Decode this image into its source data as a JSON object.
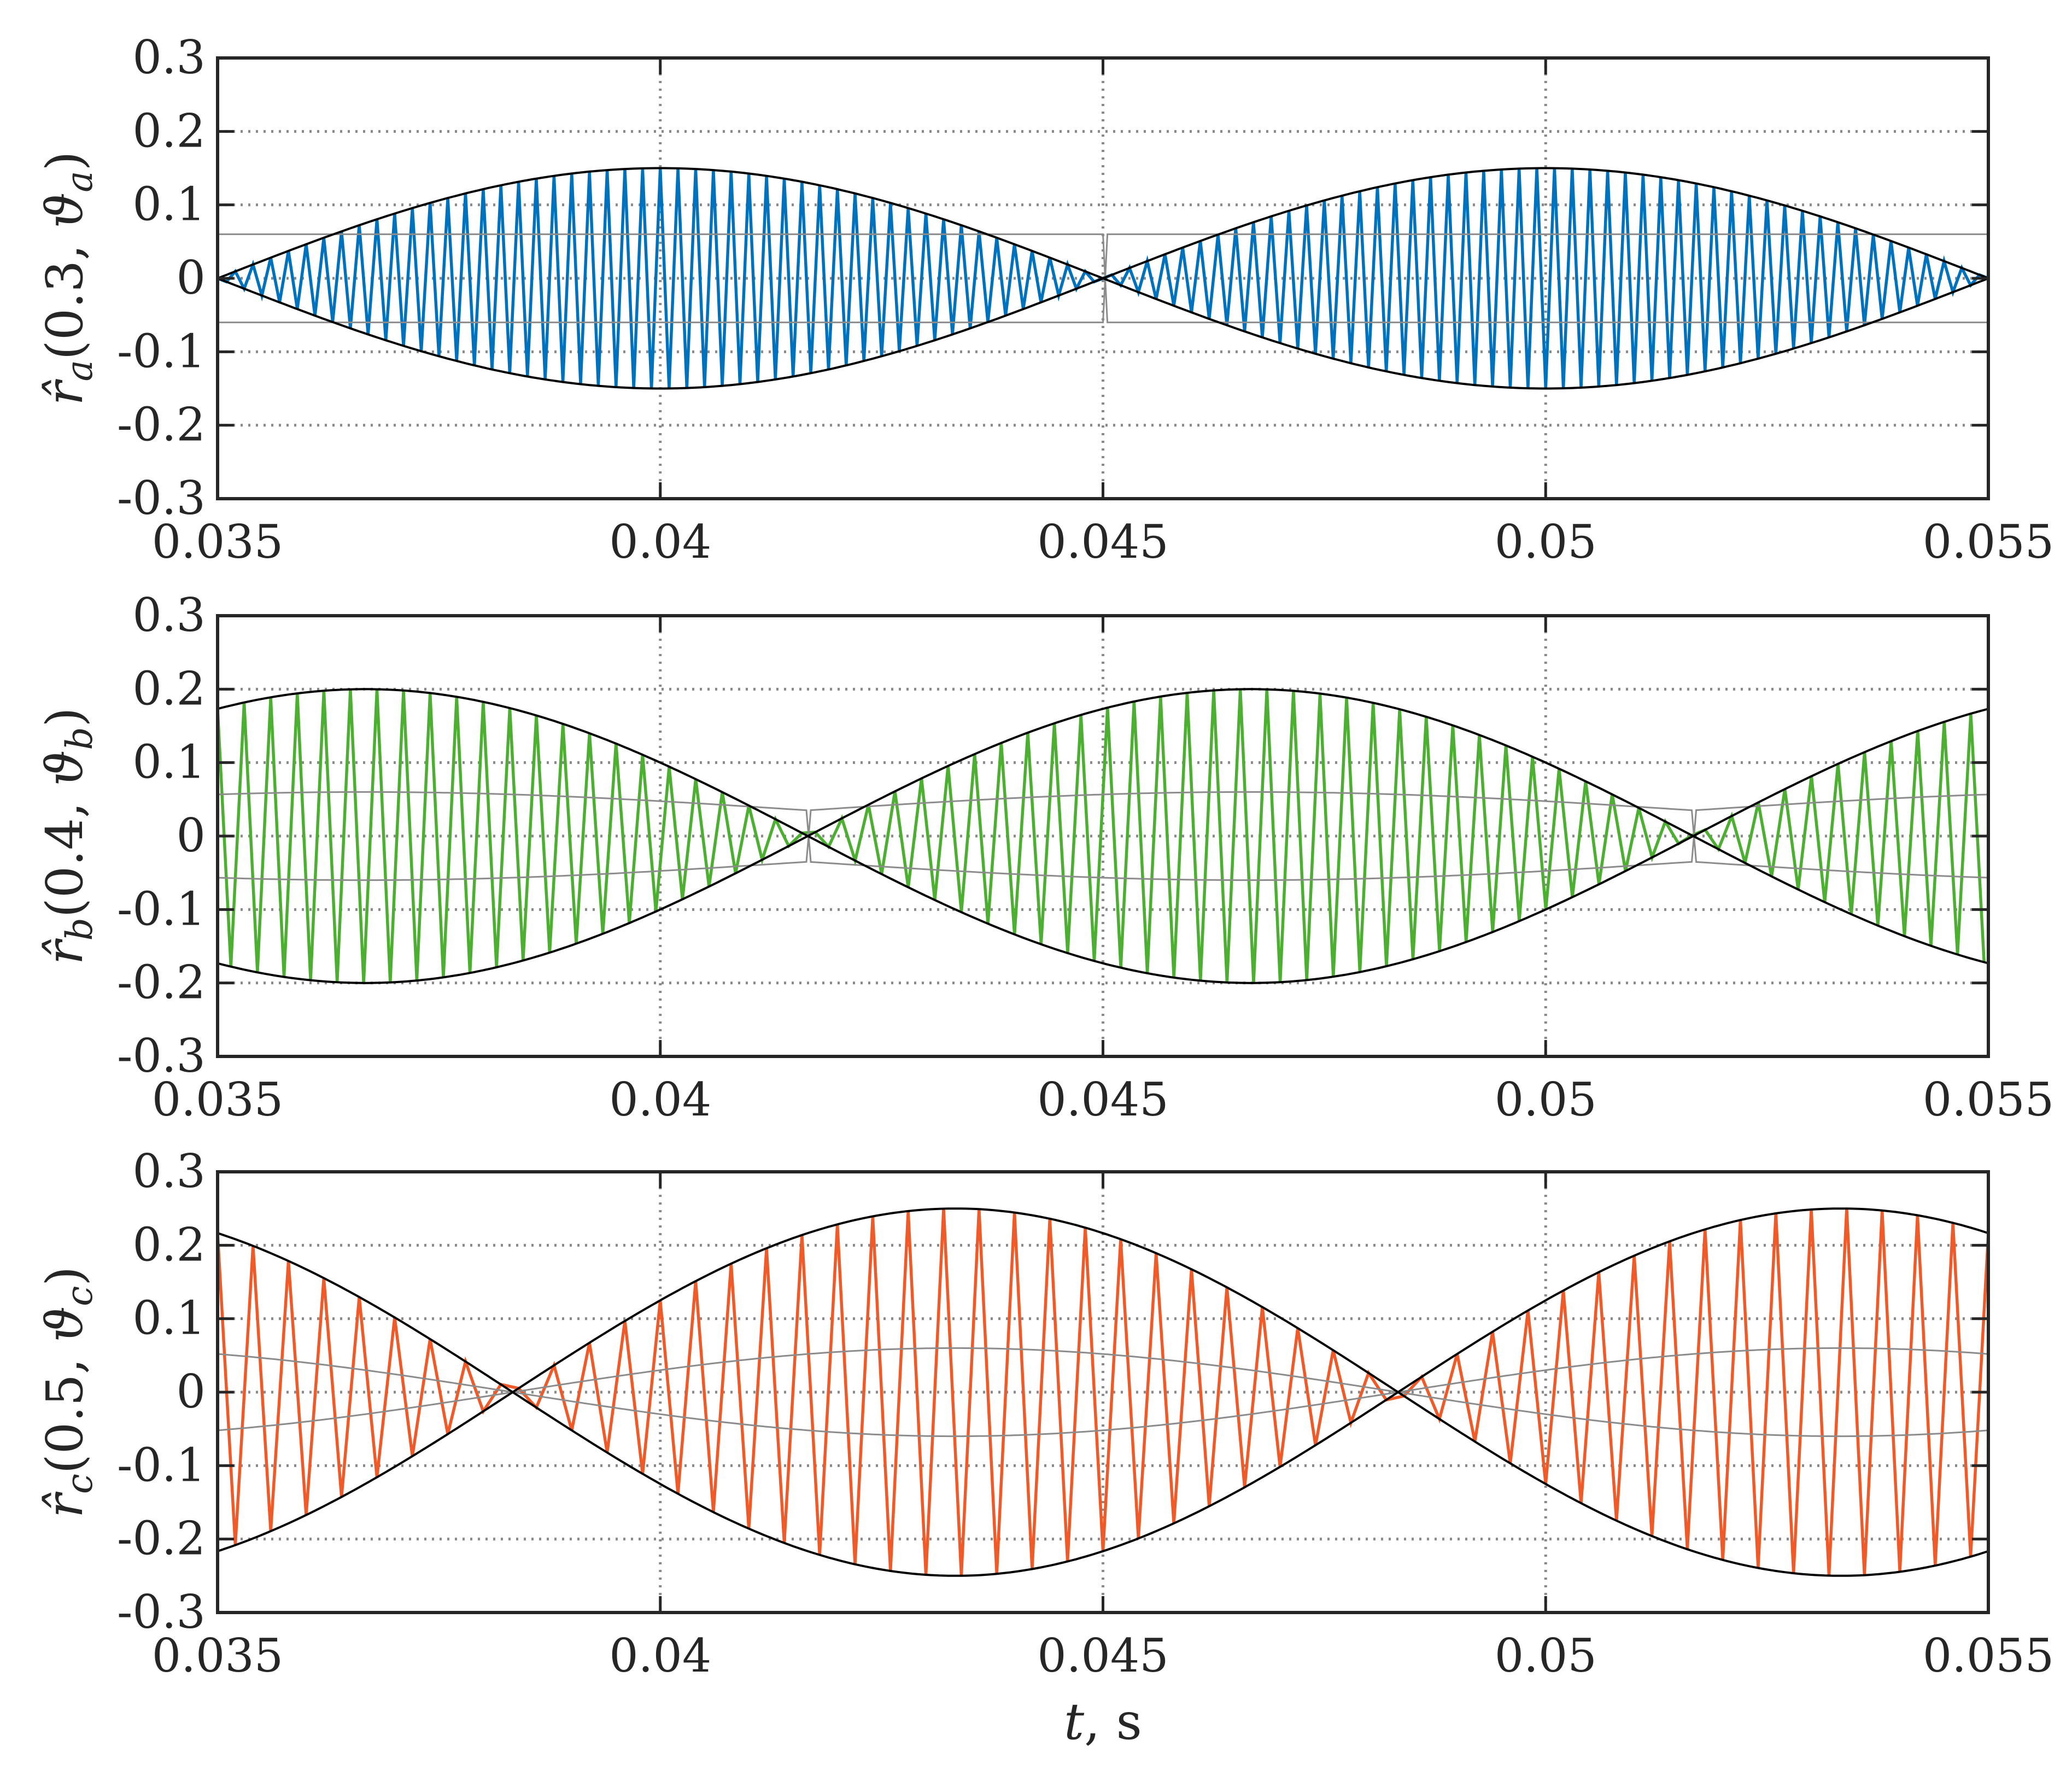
{
  "chart_data": [
    {
      "type": "line",
      "ylabel": {
        "base": "r̂",
        "sub": "a",
        "args": "(0.3, ",
        "theta": "ϑ",
        "theta_sub": "a",
        "close": ")"
      },
      "xlabel": "",
      "xlim": [
        0.035,
        0.055
      ],
      "ylim": [
        -0.3,
        0.3
      ],
      "grid": true,
      "xticks": [
        "0.035",
        "0.04",
        "0.045",
        "0.05",
        "0.055"
      ],
      "yticks": [
        "0.3",
        "0.2",
        "0.1",
        "0",
        "-0.1",
        "-0.2",
        "-0.3"
      ],
      "series": [
        {
          "role": "signal",
          "color": "#0072BD",
          "frequency_hz": 5000,
          "envelope_amplitude": 0.15,
          "envelope_frequency_hz": 50,
          "envelope_phase_deg": 0,
          "zero_crossings": [
            0.035,
            0.045,
            0.055
          ]
        },
        {
          "role": "outer-envelope",
          "color": "#000000",
          "amplitude": 0.15,
          "peaks_at": [
            0.04,
            0.05
          ]
        },
        {
          "role": "inner-envelope",
          "color": "#8c8c8c",
          "amplitude": 0.06,
          "peaks_at": [
            0.04,
            0.05
          ]
        }
      ]
    },
    {
      "type": "line",
      "ylabel": {
        "base": "r̂",
        "sub": "b",
        "args": "(0.4, ",
        "theta": "ϑ",
        "theta_sub": "b",
        "close": ")"
      },
      "xlabel": "",
      "xlim": [
        0.035,
        0.055
      ],
      "ylim": [
        -0.3,
        0.3
      ],
      "grid": true,
      "xticks": [
        "0.035",
        "0.04",
        "0.045",
        "0.05",
        "0.055"
      ],
      "yticks": [
        "0.3",
        "0.2",
        "0.1",
        "0",
        "-0.1",
        "-0.2",
        "-0.3"
      ],
      "series": [
        {
          "role": "signal",
          "color": "#4DAF32",
          "frequency_hz": 3333,
          "envelope_amplitude": 0.2,
          "envelope_frequency_hz": 50,
          "envelope_phase_deg": 60,
          "zero_crossings": [
            0.0417,
            0.0517
          ]
        },
        {
          "role": "outer-envelope",
          "color": "#000000",
          "amplitude": 0.2,
          "peaks_at": [
            0.0367,
            0.0467
          ]
        },
        {
          "role": "inner-envelope",
          "color": "#8c8c8c",
          "amplitude": 0.06,
          "min_amplitude": 0.035
        }
      ]
    },
    {
      "type": "line",
      "ylabel": {
        "base": "r̂",
        "sub": "c",
        "args": "(0.5, ",
        "theta": "ϑ",
        "theta_sub": "c",
        "close": ")"
      },
      "xlabel": "t, s",
      "xlim": [
        0.035,
        0.055
      ],
      "ylim": [
        -0.3,
        0.3
      ],
      "grid": true,
      "xticks": [
        "0.035",
        "0.04",
        "0.045",
        "0.05",
        "0.055"
      ],
      "yticks": [
        "0.3",
        "0.2",
        "0.1",
        "0",
        "-0.1",
        "-0.2",
        "-0.3"
      ],
      "series": [
        {
          "role": "signal",
          "color": "#F05A28",
          "frequency_hz": 2500,
          "envelope_amplitude": 0.25,
          "envelope_frequency_hz": 50,
          "envelope_phase_deg": 120,
          "zero_crossings": [
            0.0383,
            0.0483
          ]
        },
        {
          "role": "outer-envelope",
          "color": "#000000",
          "amplitude": 0.25,
          "peaks_at": [
            0.0433,
            0.0533
          ]
        },
        {
          "role": "inner-envelope",
          "color": "#8c8c8c",
          "amplitude": 0.06,
          "min_amplitude": 0.0
        }
      ]
    }
  ]
}
